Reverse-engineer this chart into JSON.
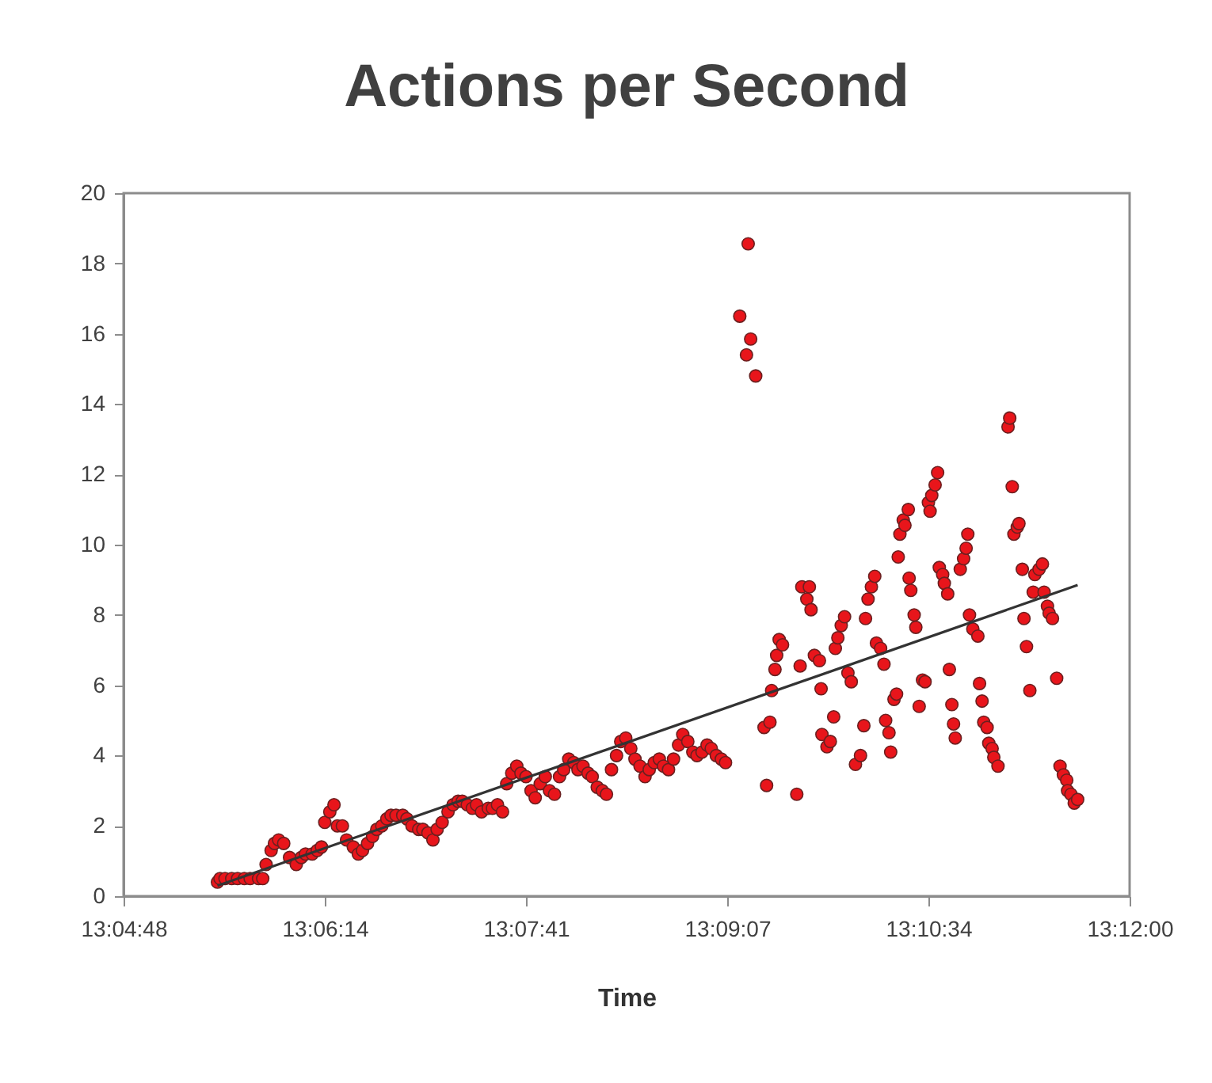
{
  "chart_data": {
    "type": "scatter",
    "title": "Actions per Second",
    "xlabel": "Time",
    "grid": false,
    "xlim": [
      13.08,
      13.2
    ],
    "xticks": [
      {
        "value": 13.08,
        "label": "13:04:48"
      },
      {
        "value": 13.104,
        "label": "13:06:14"
      },
      {
        "value": 13.128,
        "label": "13:07:41"
      },
      {
        "value": 13.152,
        "label": "13:09:07"
      },
      {
        "value": 13.176,
        "label": "13:10:34"
      },
      {
        "value": 13.2,
        "label": "13:12:00"
      }
    ],
    "ylim": [
      0,
      20
    ],
    "yticks": [
      0,
      2,
      4,
      6,
      8,
      10,
      12,
      14,
      16,
      18,
      20
    ],
    "series": [
      {
        "marker": "circle",
        "color": "#e8151b",
        "x": [
          13.0912,
          13.0915,
          13.0921,
          13.0929,
          13.0936,
          13.0944,
          13.0951,
          13.0961,
          13.0966,
          13.097,
          13.0976,
          13.098,
          13.0985,
          13.0991,
          13.0998,
          13.1006,
          13.1012,
          13.1017,
          13.1025,
          13.1031,
          13.1036,
          13.104,
          13.1046,
          13.1051,
          13.1055,
          13.1061,
          13.1066,
          13.1074,
          13.108,
          13.1085,
          13.1091,
          13.1097,
          13.1102,
          13.1108,
          13.1114,
          13.1119,
          13.1125,
          13.1133,
          13.1138,
          13.1144,
          13.1152,
          13.1157,
          13.1163,
          13.1169,
          13.1174,
          13.118,
          13.1187,
          13.1193,
          13.1199,
          13.1204,
          13.121,
          13.1216,
          13.1221,
          13.1227,
          13.1235,
          13.124,
          13.1246,
          13.1252,
          13.1257,
          13.1263,
          13.1269,
          13.1274,
          13.128,
          13.1286,
          13.1291,
          13.1297,
          13.1303,
          13.1308,
          13.1314,
          13.132,
          13.1325,
          13.1331,
          13.1337,
          13.1342,
          13.1348,
          13.1354,
          13.1359,
          13.1365,
          13.1371,
          13.1376,
          13.1382,
          13.1388,
          13.1393,
          13.1399,
          13.1405,
          13.141,
          13.1416,
          13.1422,
          13.1427,
          13.1433,
          13.1439,
          13.1444,
          13.145,
          13.1456,
          13.1462,
          13.1467,
          13.1473,
          13.1479,
          13.1484,
          13.149,
          13.1496,
          13.1501,
          13.1507,
          13.1513,
          13.1518,
          13.1554,
          13.1545,
          13.1535,
          13.1548,
          13.1543,
          13.1567,
          13.1603,
          13.1564,
          13.1571,
          13.1573,
          13.1577,
          13.1579,
          13.1582,
          13.1586,
          13.1607,
          13.1609,
          13.1615,
          13.1618,
          13.162,
          13.1624,
          13.163,
          13.1632,
          13.1633,
          13.1639,
          13.1643,
          13.1647,
          13.1649,
          13.1652,
          13.1656,
          13.166,
          13.1664,
          13.1668,
          13.1673,
          13.1679,
          13.1683,
          13.1685,
          13.1688,
          13.1692,
          13.1696,
          13.1698,
          13.1703,
          13.1707,
          13.1709,
          13.1713,
          13.1715,
          13.1719,
          13.1722,
          13.1724,
          13.1726,
          13.173,
          13.1732,
          13.1736,
          13.1737,
          13.1739,
          13.1743,
          13.1745,
          13.1749,
          13.1753,
          13.1756,
          13.176,
          13.1762,
          13.1764,
          13.1768,
          13.1771,
          13.1773,
          13.1777,
          13.1779,
          13.1783,
          13.1785,
          13.1788,
          13.179,
          13.1792,
          13.1798,
          13.1802,
          13.1805,
          13.1807,
          13.1809,
          13.1813,
          13.1819,
          13.1821,
          13.1824,
          13.1826,
          13.183,
          13.1832,
          13.1836,
          13.1838,
          13.1843,
          13.1855,
          13.1857,
          13.186,
          13.1862,
          13.1866,
          13.1868,
          13.1872,
          13.1874,
          13.1877,
          13.1881,
          13.1885,
          13.1887,
          13.1892,
          13.1896,
          13.1898,
          13.1902,
          13.1904,
          13.1908,
          13.1913,
          13.1917,
          13.1921,
          13.1925,
          13.1926,
          13.193,
          13.1934,
          13.1938
        ],
        "values": [
          0.4,
          0.5,
          0.5,
          0.5,
          0.5,
          0.5,
          0.5,
          0.5,
          0.5,
          0.9,
          1.3,
          1.5,
          1.6,
          1.5,
          1.1,
          0.9,
          1.1,
          1.2,
          1.2,
          1.3,
          1.4,
          2.1,
          2.4,
          2.6,
          2.0,
          2.0,
          1.6,
          1.4,
          1.2,
          1.3,
          1.5,
          1.7,
          1.9,
          2.0,
          2.2,
          2.3,
          2.3,
          2.3,
          2.2,
          2.0,
          1.9,
          1.9,
          1.8,
          1.6,
          1.9,
          2.1,
          2.4,
          2.6,
          2.7,
          2.7,
          2.6,
          2.5,
          2.6,
          2.4,
          2.5,
          2.5,
          2.6,
          2.4,
          3.2,
          3.5,
          3.7,
          3.5,
          3.4,
          3.0,
          2.8,
          3.2,
          3.4,
          3.0,
          2.9,
          3.4,
          3.6,
          3.9,
          3.8,
          3.6,
          3.7,
          3.5,
          3.4,
          3.1,
          3.0,
          2.9,
          3.6,
          4.0,
          4.4,
          4.5,
          4.2,
          3.9,
          3.7,
          3.4,
          3.6,
          3.8,
          3.9,
          3.7,
          3.6,
          3.9,
          4.3,
          4.6,
          4.4,
          4.1,
          4.0,
          4.1,
          4.3,
          4.2,
          4.0,
          3.9,
          3.8,
          14.8,
          18.56,
          16.5,
          15.85,
          15.4,
          3.15,
          2.9,
          4.8,
          4.95,
          5.85,
          6.45,
          6.85,
          7.3,
          7.15,
          6.55,
          8.8,
          8.45,
          8.8,
          8.15,
          6.85,
          6.7,
          5.9,
          4.6,
          4.25,
          4.4,
          5.1,
          7.05,
          7.35,
          7.7,
          7.95,
          6.35,
          6.1,
          3.75,
          4.0,
          4.85,
          7.9,
          8.45,
          8.8,
          9.1,
          7.2,
          7.05,
          6.6,
          5.0,
          4.65,
          4.1,
          5.6,
          5.75,
          9.65,
          10.3,
          10.7,
          10.55,
          11.0,
          9.05,
          8.7,
          8.0,
          7.65,
          5.4,
          6.15,
          6.1,
          11.2,
          10.95,
          11.4,
          11.7,
          12.05,
          9.35,
          9.15,
          8.9,
          8.6,
          6.45,
          5.45,
          4.9,
          4.5,
          9.3,
          9.6,
          9.9,
          10.3,
          8.0,
          7.6,
          7.4,
          6.05,
          5.55,
          4.95,
          4.8,
          4.35,
          4.2,
          3.95,
          3.7,
          13.35,
          13.6,
          11.65,
          10.3,
          10.5,
          10.6,
          9.3,
          7.9,
          7.1,
          5.85,
          8.65,
          9.15,
          9.3,
          9.45,
          8.65,
          8.25,
          8.05,
          7.9,
          6.2,
          3.7,
          3.45,
          3.3,
          3.0,
          2.9,
          2.65,
          2.75
        ]
      },
      {
        "type": "line",
        "color": "#333333",
        "x": [
          13.0912,
          13.1938
        ],
        "values": [
          0.3,
          8.85
        ]
      }
    ]
  }
}
